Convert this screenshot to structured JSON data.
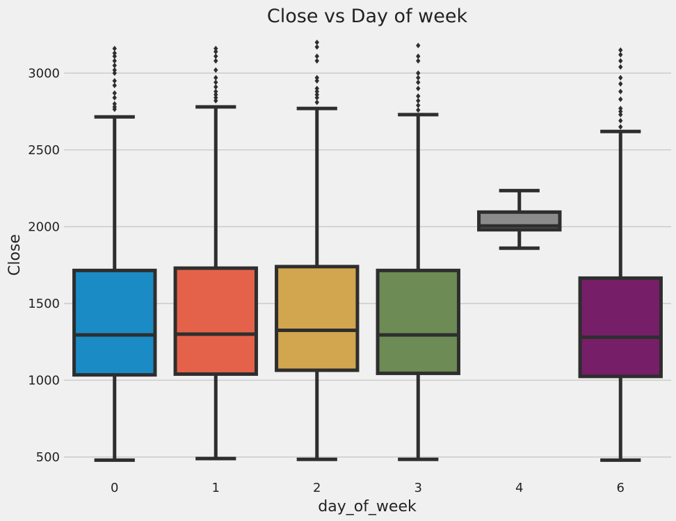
{
  "chart_data": {
    "type": "box",
    "title": "Close vs Day of week",
    "xlabel": "day_of_week",
    "ylabel": "Close",
    "ylim": [
      400,
      3250
    ],
    "yticks": [
      500,
      1000,
      1500,
      2000,
      2500,
      3000
    ],
    "grid": "horizontal",
    "categories": [
      "0",
      "1",
      "2",
      "3",
      "4",
      "6"
    ],
    "series": [
      {
        "category": "0",
        "color": "#1a8bc4",
        "whisker_low": 480,
        "q1": 1035,
        "median": 1295,
        "q3": 1715,
        "whisker_high": 2715,
        "outliers": [
          2765,
          2780,
          2800,
          2840,
          2870,
          2920,
          2950,
          3000,
          3020,
          3050,
          3080,
          3110,
          3130,
          3160
        ]
      },
      {
        "category": "1",
        "color": "#e5624a",
        "whisker_low": 490,
        "q1": 1040,
        "median": 1300,
        "q3": 1730,
        "whisker_high": 2780,
        "outliers": [
          2820,
          2840,
          2860,
          2880,
          2910,
          2940,
          2970,
          3020,
          3080,
          3110,
          3140,
          3160
        ]
      },
      {
        "category": "2",
        "color": "#d2a64e",
        "whisker_low": 485,
        "q1": 1065,
        "median": 1325,
        "q3": 1740,
        "whisker_high": 2770,
        "outliers": [
          2810,
          2840,
          2860,
          2880,
          2900,
          2950,
          2970,
          3080,
          3110,
          3170,
          3200
        ]
      },
      {
        "category": "3",
        "color": "#6d8b55",
        "whisker_low": 485,
        "q1": 1045,
        "median": 1295,
        "q3": 1715,
        "whisker_high": 2730,
        "outliers": [
          2760,
          2790,
          2820,
          2850,
          2900,
          2940,
          2970,
          3000,
          3080,
          3110,
          3180
        ]
      },
      {
        "category": "4",
        "color": "#8b8b8b",
        "whisker_low": 1860,
        "q1": 1980,
        "median": 2005,
        "q3": 2095,
        "whisker_high": 2235,
        "outliers": []
      },
      {
        "category": "6",
        "color": "#771e68",
        "whisker_low": 480,
        "q1": 1025,
        "median": 1280,
        "q3": 1665,
        "whisker_high": 2620,
        "outliers": [
          2650,
          2690,
          2730,
          2750,
          2770,
          2830,
          2880,
          2930,
          2970,
          3040,
          3080,
          3120,
          3150
        ]
      }
    ]
  }
}
